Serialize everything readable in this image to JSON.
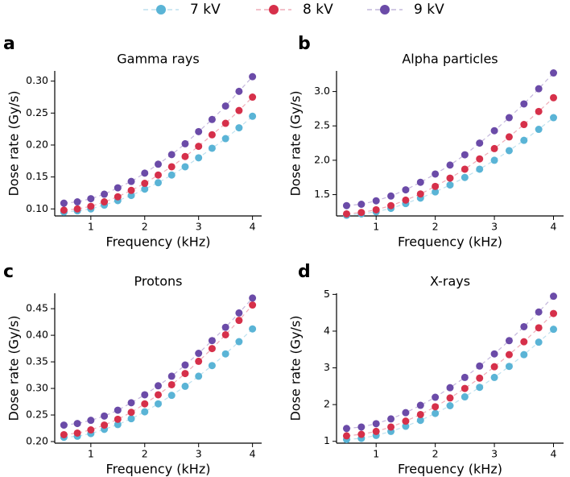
{
  "chart_data": [
    {
      "type": "scatter-line",
      "panel": "a",
      "title": "Gamma rays",
      "xlabel": "Frequency (kHz)",
      "ylabel": "Dose rate (Gy/s)",
      "x": [
        0.5,
        0.75,
        1,
        1.25,
        1.5,
        1.75,
        2,
        2.25,
        2.5,
        2.75,
        3,
        3.25,
        3.5,
        3.75,
        4
      ],
      "series": [
        {
          "name": "7 kV",
          "color": "#5ab4d6",
          "values": [
            0.095,
            0.097,
            0.1,
            0.106,
            0.113,
            0.121,
            0.131,
            0.141,
            0.153,
            0.166,
            0.18,
            0.195,
            0.21,
            0.227,
            0.245
          ]
        },
        {
          "name": "8 kV",
          "color": "#d6304a",
          "values": [
            0.098,
            0.1,
            0.104,
            0.111,
            0.119,
            0.129,
            0.14,
            0.153,
            0.166,
            0.182,
            0.198,
            0.216,
            0.234,
            0.254,
            0.275
          ]
        },
        {
          "name": "9 kV",
          "color": "#6b4ba8",
          "values": [
            0.109,
            0.111,
            0.116,
            0.123,
            0.133,
            0.143,
            0.156,
            0.17,
            0.185,
            0.202,
            0.221,
            0.24,
            0.261,
            0.284,
            0.307
          ]
        }
      ],
      "xlim": [
        0.33,
        4.17
      ],
      "xticks": [
        1,
        2,
        3,
        4
      ],
      "ylim": [
        0.089,
        0.316
      ],
      "yticks": [
        {
          "value": 0.1,
          "label": "0.10"
        },
        {
          "value": 0.15,
          "label": "0.15"
        },
        {
          "value": 0.2,
          "label": "0.20"
        },
        {
          "value": 0.25,
          "label": "0.25"
        },
        {
          "value": 0.3,
          "label": "0.30"
        }
      ]
    },
    {
      "type": "scatter-line",
      "panel": "b",
      "title": "Alpha particles",
      "xlabel": "Frequency (kHz)",
      "ylabel": "Dose rate (Gy/s)",
      "x": [
        0.5,
        0.75,
        1,
        1.25,
        1.5,
        1.75,
        2,
        2.25,
        2.5,
        2.75,
        3,
        3.25,
        3.5,
        3.75,
        4
      ],
      "series": [
        {
          "name": "7 kV",
          "color": "#5ab4d6",
          "values": [
            1.2,
            1.22,
            1.25,
            1.3,
            1.37,
            1.45,
            1.54,
            1.64,
            1.75,
            1.87,
            2.0,
            2.14,
            2.29,
            2.45,
            2.62
          ]
        },
        {
          "name": "8 kV",
          "color": "#d6304a",
          "values": [
            1.22,
            1.24,
            1.28,
            1.34,
            1.42,
            1.51,
            1.62,
            1.74,
            1.87,
            2.02,
            2.17,
            2.34,
            2.52,
            2.71,
            2.91
          ]
        },
        {
          "name": "9 kV",
          "color": "#6b4ba8",
          "values": [
            1.34,
            1.36,
            1.41,
            1.48,
            1.57,
            1.68,
            1.8,
            1.93,
            2.08,
            2.25,
            2.43,
            2.62,
            2.82,
            3.04,
            3.27
          ]
        }
      ],
      "xlim": [
        0.33,
        4.17
      ],
      "xticks": [
        1,
        2,
        3,
        4
      ],
      "ylim": [
        1.19,
        3.3
      ],
      "yticks": [
        1.5,
        {
          "value": 2,
          "label": "2.0"
        },
        2.5,
        {
          "value": 3,
          "label": "3.0"
        }
      ]
    },
    {
      "type": "scatter-line",
      "panel": "c",
      "title": "Protons",
      "xlabel": "Frequency (kHz)",
      "ylabel": "Dose rate (Gy/s)",
      "x": [
        0.5,
        0.75,
        1,
        1.25,
        1.5,
        1.75,
        2,
        2.25,
        2.5,
        2.75,
        3,
        3.25,
        3.5,
        3.75,
        4
      ],
      "series": [
        {
          "name": "7 kV",
          "color": "#5ab4d6",
          "values": [
            0.208,
            0.21,
            0.215,
            0.223,
            0.232,
            0.243,
            0.256,
            0.271,
            0.287,
            0.304,
            0.323,
            0.343,
            0.365,
            0.388,
            0.412
          ]
        },
        {
          "name": "8 kV",
          "color": "#d6304a",
          "values": [
            0.213,
            0.216,
            0.222,
            0.231,
            0.242,
            0.255,
            0.271,
            0.288,
            0.307,
            0.328,
            0.351,
            0.375,
            0.401,
            0.428,
            0.457
          ]
        },
        {
          "name": "9 kV",
          "color": "#6b4ba8",
          "values": [
            0.231,
            0.234,
            0.24,
            0.248,
            0.259,
            0.273,
            0.288,
            0.305,
            0.323,
            0.344,
            0.366,
            0.39,
            0.415,
            0.442,
            0.47
          ]
        }
      ],
      "xlim": [
        0.33,
        4.17
      ],
      "xticks": [
        1,
        2,
        3,
        4
      ],
      "ylim": [
        0.197,
        0.479
      ],
      "yticks": [
        {
          "value": 0.2,
          "label": "0.20"
        },
        0.25,
        {
          "value": 0.3,
          "label": "0.30"
        },
        0.35,
        {
          "value": 0.4,
          "label": "0.40"
        },
        0.45
      ]
    },
    {
      "type": "scatter-line",
      "panel": "d",
      "title": "X-rays",
      "xlabel": "Frequency (kHz)",
      "ylabel": "Dose rate (Gy/s)",
      "x": [
        0.5,
        0.75,
        1,
        1.25,
        1.5,
        1.75,
        2,
        2.25,
        2.5,
        2.75,
        3,
        3.25,
        3.5,
        3.75,
        4
      ],
      "series": [
        {
          "name": "7 kV",
          "color": "#5ab4d6",
          "values": [
            1.05,
            1.08,
            1.16,
            1.27,
            1.41,
            1.57,
            1.76,
            1.97,
            2.21,
            2.47,
            2.74,
            3.04,
            3.36,
            3.7,
            4.05
          ]
        },
        {
          "name": "8 kV",
          "color": "#d6304a",
          "values": [
            1.15,
            1.19,
            1.27,
            1.39,
            1.55,
            1.73,
            1.94,
            2.18,
            2.44,
            2.72,
            3.03,
            3.36,
            3.71,
            4.09,
            4.48
          ]
        },
        {
          "name": "9 kV",
          "color": "#6b4ba8",
          "values": [
            1.35,
            1.39,
            1.48,
            1.61,
            1.78,
            1.98,
            2.2,
            2.46,
            2.74,
            3.05,
            3.38,
            3.74,
            4.12,
            4.52,
            4.95
          ]
        }
      ],
      "xlim": [
        0.33,
        4.17
      ],
      "xticks": [
        1,
        2,
        3,
        4
      ],
      "ylim": [
        0.95,
        5.03
      ],
      "yticks": [
        1,
        2,
        3,
        4,
        5
      ]
    }
  ]
}
